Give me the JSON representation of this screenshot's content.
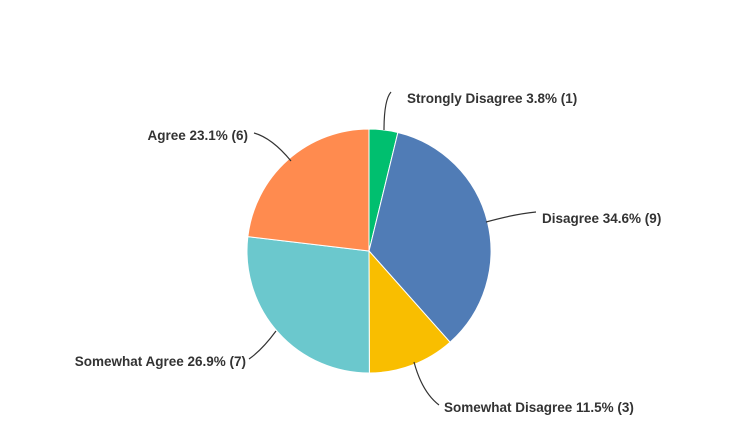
{
  "chart_data": {
    "type": "pie",
    "start_angle": "12 o'clock, clockwise",
    "slices": [
      {
        "label": "Strongly Disagree",
        "percent": 3.8,
        "count": 1,
        "color": "#00bf6f",
        "text": "Strongly Disagree 3.8% (1)"
      },
      {
        "label": "Disagree",
        "percent": 34.6,
        "count": 9,
        "color": "#507cb6",
        "text": "Disagree 34.6% (9)"
      },
      {
        "label": "Somewhat Disagree",
        "percent": 11.5,
        "count": 3,
        "color": "#f9be00",
        "text": "Somewhat Disagree 11.5% (3)"
      },
      {
        "label": "Somewhat Agree",
        "percent": 26.9,
        "count": 7,
        "color": "#6bc8cd",
        "text": "Somewhat Agree 26.9% (7)"
      },
      {
        "label": "Agree",
        "percent": 23.1,
        "count": 6,
        "color": "#ff8b4f",
        "text": "Agree 23.1% (6)"
      }
    ]
  }
}
